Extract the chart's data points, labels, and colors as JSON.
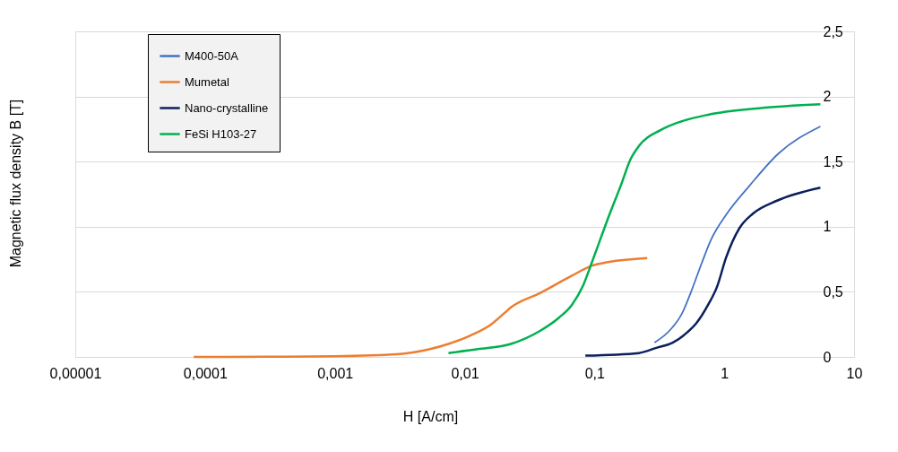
{
  "chart_data": {
    "type": "line",
    "xlabel": "H [A/cm]",
    "ylabel": "Magnetic flux density B [T]",
    "log": "x",
    "grid": "y",
    "legend": "top left",
    "line_style": "solid",
    "marker": "none",
    "xlim": [
      1e-05,
      10
    ],
    "xticks": [
      {
        "value": 1e-05,
        "label": "0,00001"
      },
      {
        "value": 0.0001,
        "label": "0,0001"
      },
      {
        "value": 0.001,
        "label": "0,001"
      },
      {
        "value": 0.01,
        "label": "0,01"
      },
      {
        "value": 0.1,
        "label": "0,1"
      },
      1,
      10
    ],
    "ylim": [
      0,
      2.5
    ],
    "yticks": [
      0,
      {
        "value": 0.5,
        "label": "0,5"
      },
      1,
      {
        "value": 1.5,
        "label": "1,5"
      },
      2,
      {
        "value": 2.5,
        "label": "2,5"
      }
    ],
    "series": [
      {
        "name": "M400-50A",
        "color": "#4472c4",
        "x": [
          0.29,
          0.385,
          0.47,
          0.55,
          0.67,
          0.79,
          1.03,
          1.58,
          2.6,
          5.5
        ],
        "values": [
          0.11,
          0.21,
          0.33,
          0.49,
          0.72,
          0.9,
          1.09,
          1.32,
          1.56,
          1.77
        ]
      },
      {
        "name": "Mumetal",
        "color": "#ed7d31",
        "x": [
          8.17e-05,
          0.0003,
          0.001,
          0.003,
          0.0054,
          0.0075,
          0.0108,
          0.016,
          0.0204,
          0.0227,
          0.038,
          0.066,
          0.095,
          0.13,
          0.255
        ],
        "values": [
          0,
          0.001,
          0.005,
          0.02,
          0.06,
          0.1,
          0.16,
          0.25,
          0.34,
          0.38,
          0.49,
          0.62,
          0.7,
          0.73,
          0.76
        ]
      },
      {
        "name": "Nano-crystalline",
        "color": "#0b1f5c",
        "x": [
          0.085,
          0.22,
          0.3,
          0.4,
          0.52,
          0.61,
          0.75,
          0.88,
          1.03,
          1.31,
          1.66,
          2.55,
          5.5
        ],
        "values": [
          0.01,
          0.03,
          0.07,
          0.11,
          0.19,
          0.26,
          0.4,
          0.54,
          0.76,
          0.99,
          1.1,
          1.2,
          1.3
        ]
      },
      {
        "name": "FeSi H103-27",
        "color": "#00b050",
        "x": [
          0.0075,
          0.0126,
          0.0227,
          0.038,
          0.053,
          0.067,
          0.081,
          0.095,
          0.13,
          0.16,
          0.19,
          0.22,
          0.32,
          0.44,
          0.75,
          1.86,
          5.5
        ],
        "values": [
          0.03,
          0.06,
          0.1,
          0.2,
          0.3,
          0.4,
          0.54,
          0.72,
          1.09,
          1.32,
          1.52,
          1.62,
          1.74,
          1.8,
          1.86,
          1.91,
          1.94
        ]
      }
    ]
  }
}
